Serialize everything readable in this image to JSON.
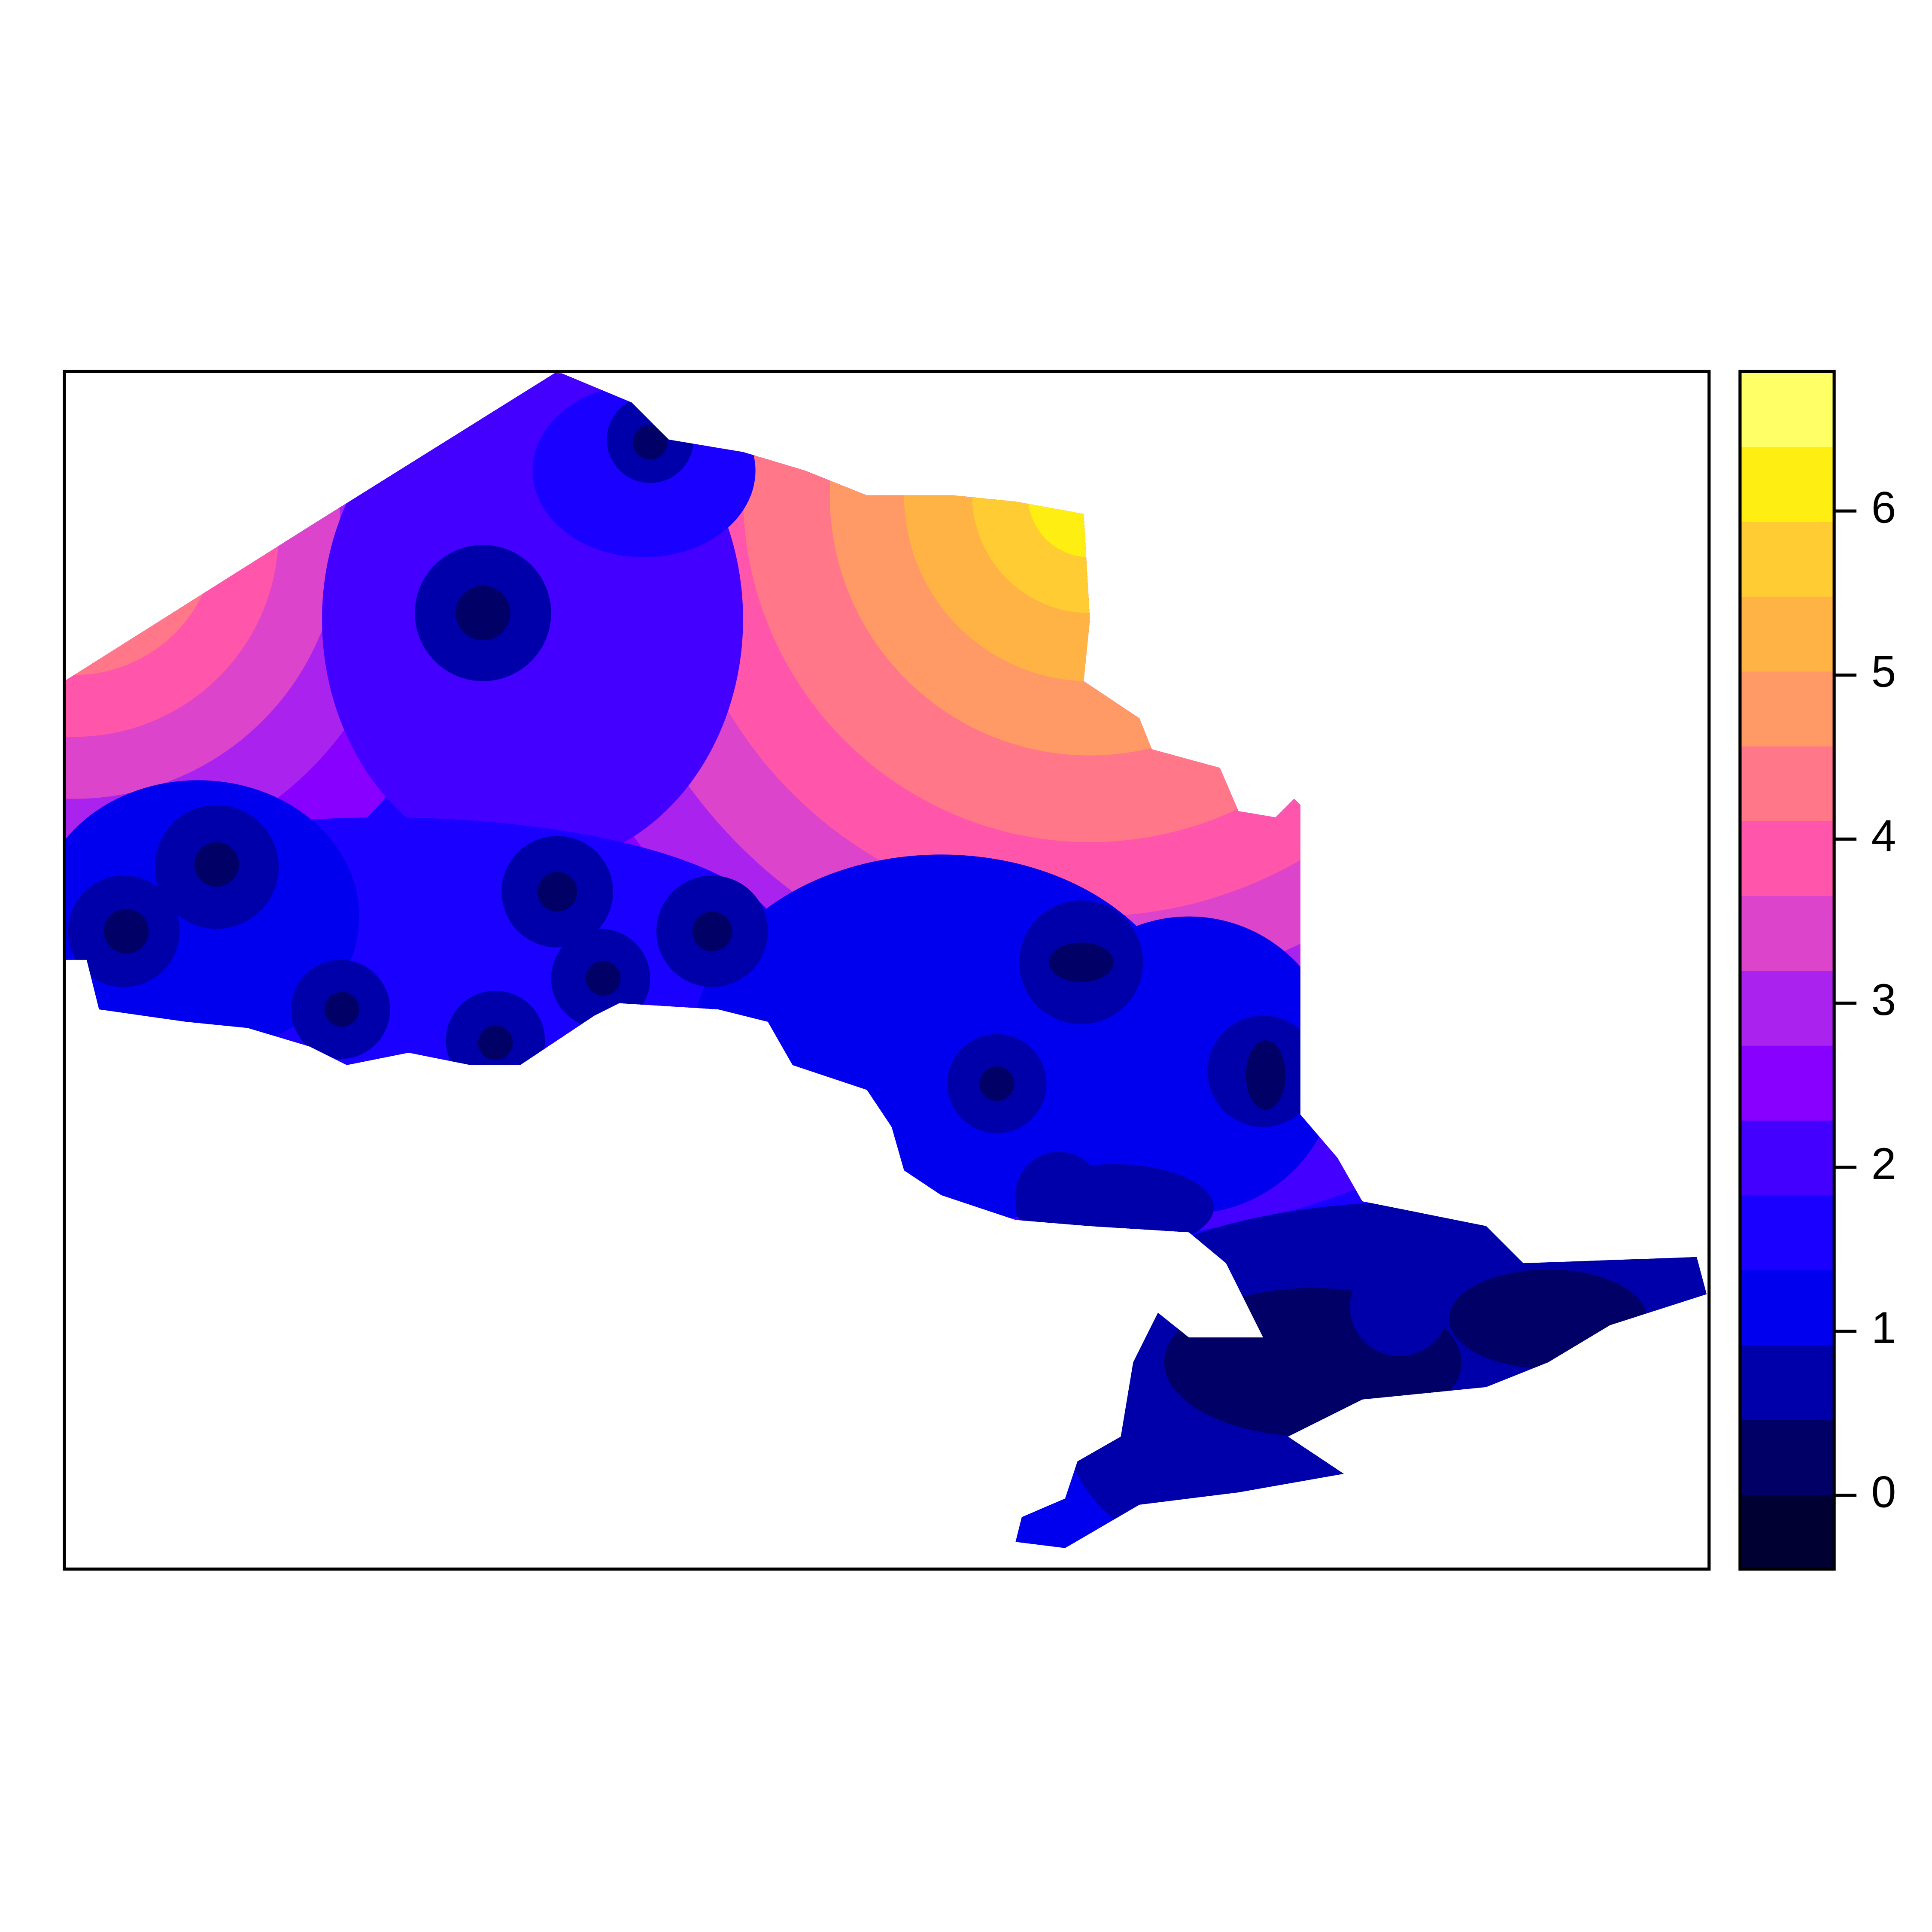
{
  "legend": {
    "range": [
      -0.45,
      6.85
    ],
    "ticks": [
      0,
      1,
      2,
      3,
      4,
      5,
      6
    ],
    "colors": [
      "#000033",
      "#000066",
      "#0000aa",
      "#0000ee",
      "#1a00ff",
      "#4400ff",
      "#8800ff",
      "#aa22ee",
      "#dd44cc",
      "#ff55aa",
      "#ff7788",
      "#ff9966",
      "#ffb344",
      "#ffcc33",
      "#ffee11",
      "#ffff66"
    ]
  }
}
